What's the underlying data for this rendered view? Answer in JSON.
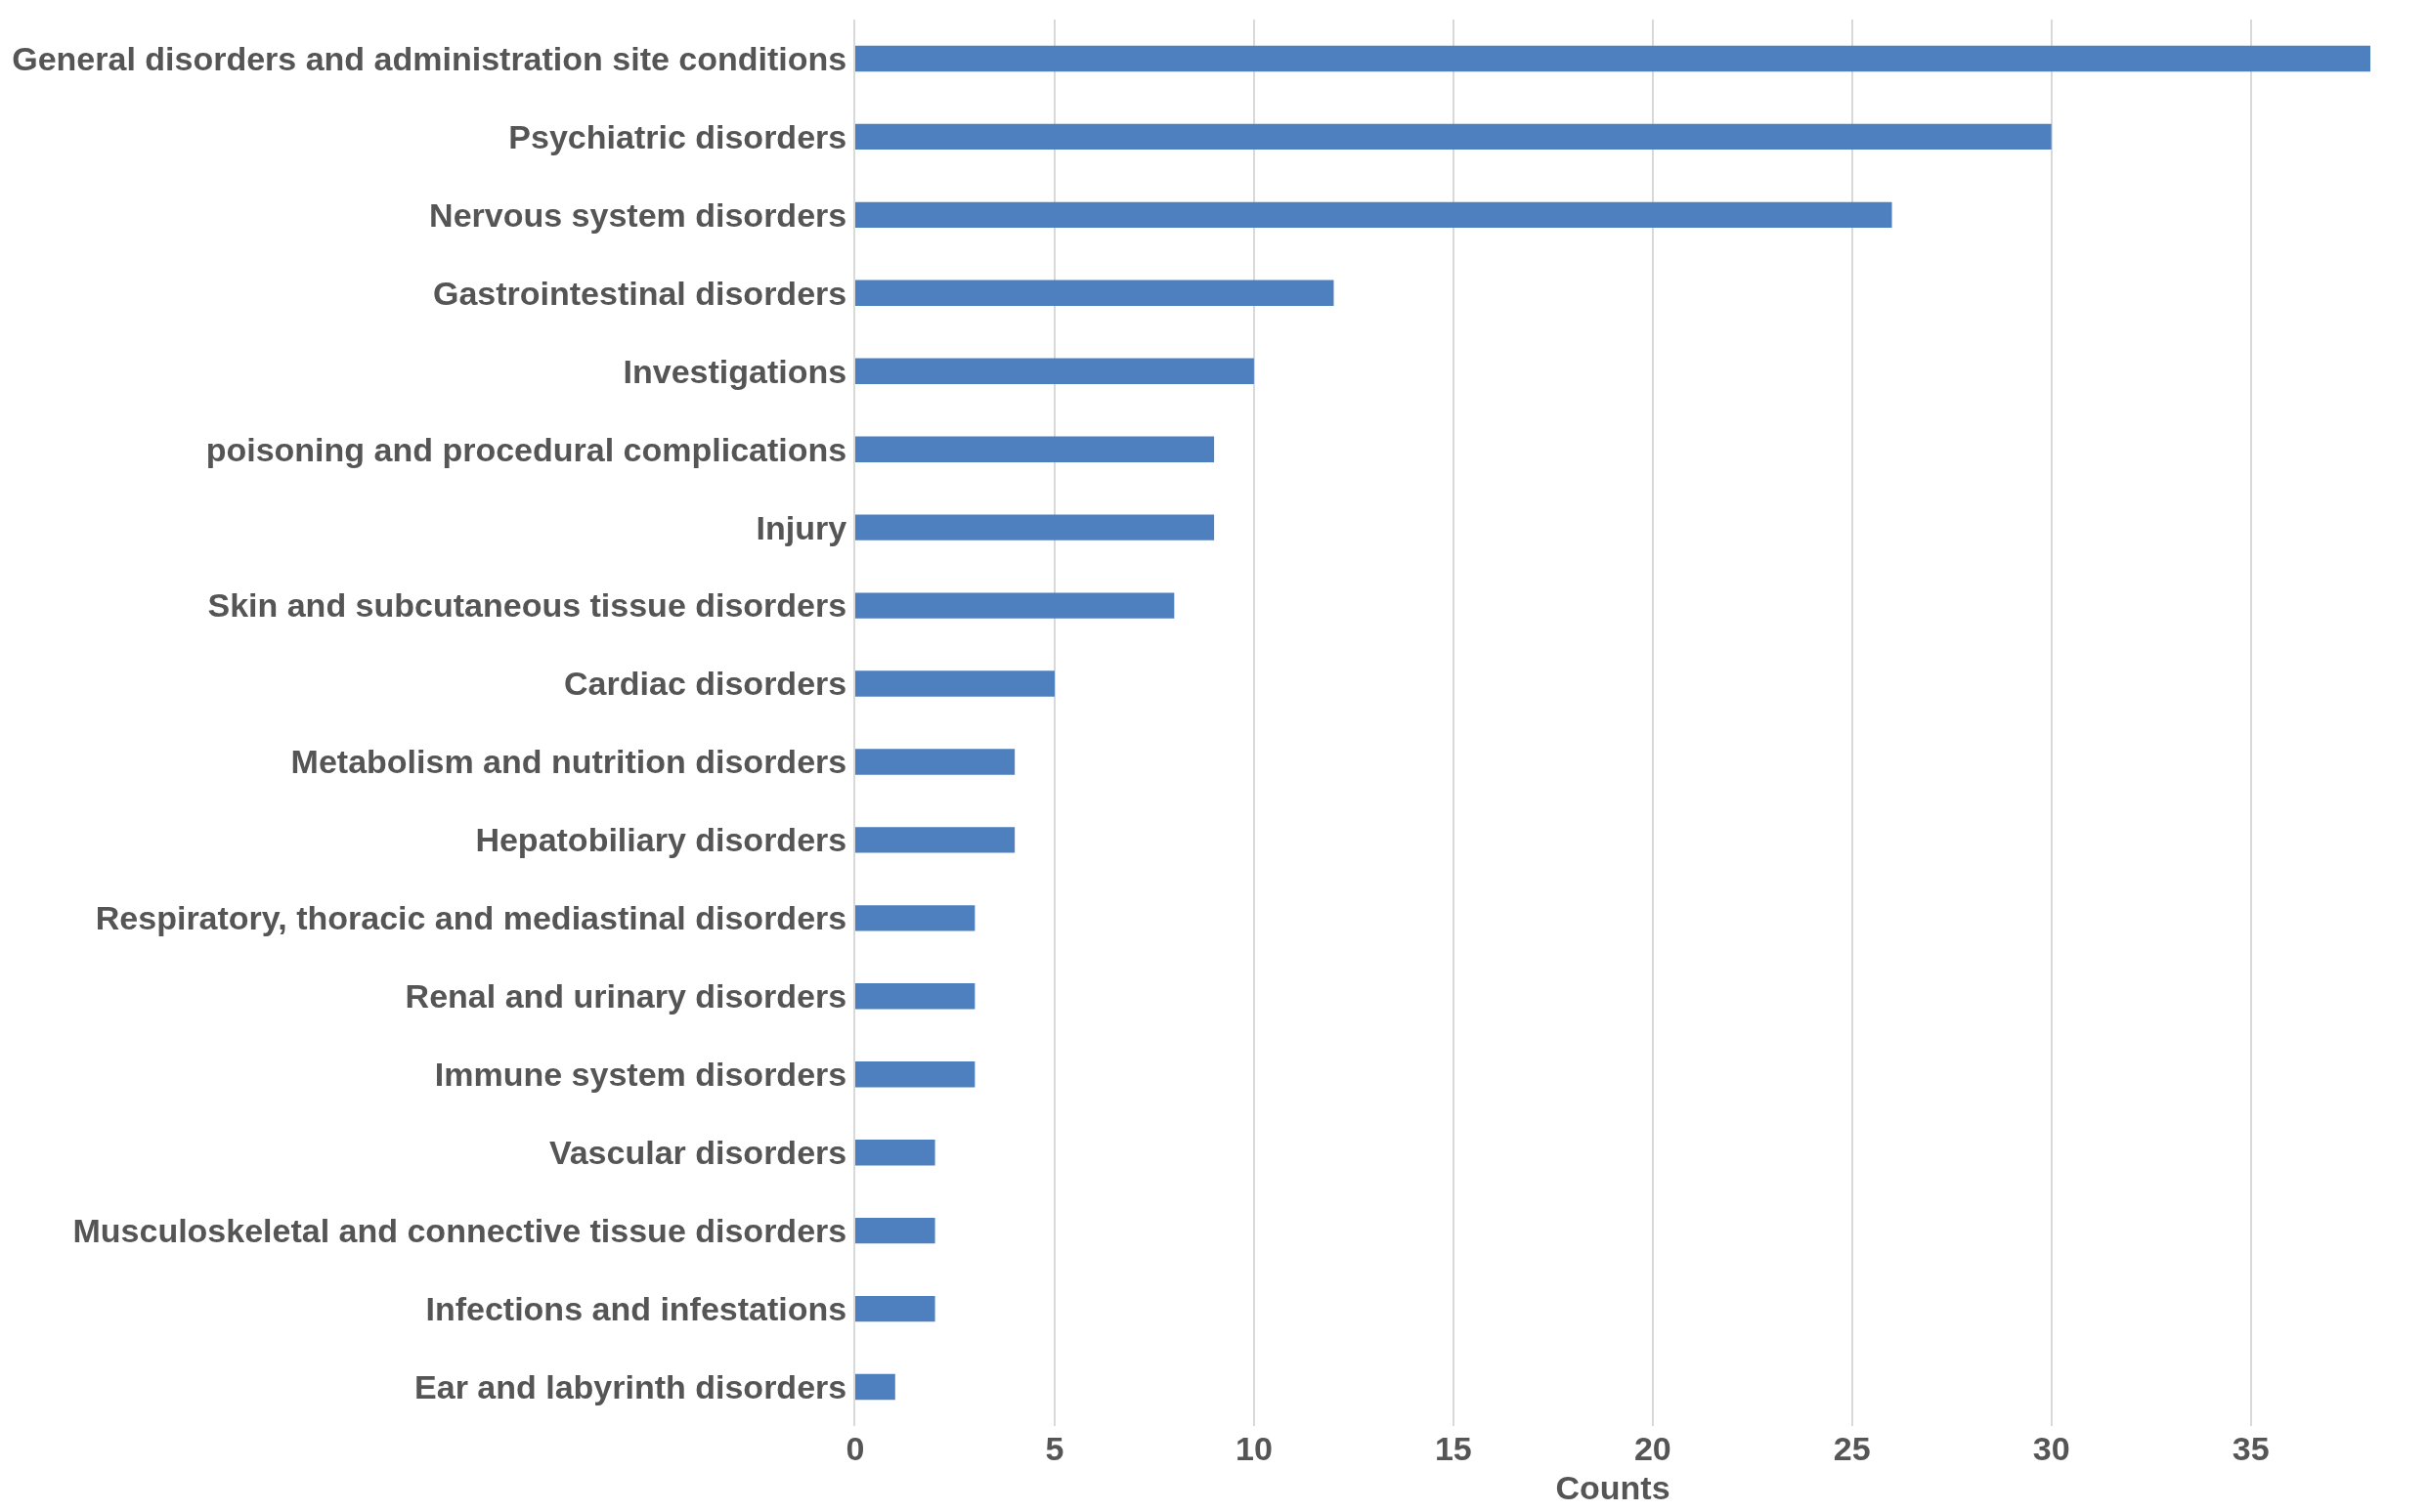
{
  "chart_data": {
    "type": "bar",
    "orientation": "horizontal",
    "xlabel": "Counts",
    "categories": [
      "General disorders and administration site conditions",
      "Psychiatric disorders",
      "Nervous system disorders",
      "Gastrointestinal disorders",
      "Investigations",
      "poisoning and procedural complications",
      "Injury",
      "Skin and subcutaneous tissue disorders",
      "Cardiac disorders",
      "Metabolism and nutrition disorders",
      "Hepatobiliary disorders",
      "Respiratory, thoracic and mediastinal disorders",
      "Renal and urinary disorders",
      "Immune system disorders",
      "Vascular disorders",
      "Musculoskeletal and connective tissue disorders",
      "Infections and infestations",
      "Ear and labyrinth disorders"
    ],
    "values": [
      38,
      30,
      26,
      12,
      10,
      9,
      9,
      8,
      5,
      4,
      4,
      3,
      3,
      3,
      2,
      2,
      2,
      1
    ],
    "color": "#4e7fbf",
    "xlim": [
      0,
      38
    ],
    "xticks": [
      0,
      5,
      10,
      15,
      20,
      25,
      30,
      35
    ],
    "grid": "x"
  }
}
